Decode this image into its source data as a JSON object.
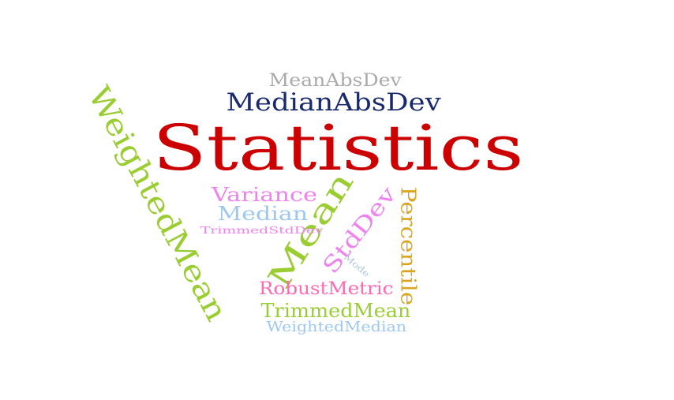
{
  "words": [
    {
      "text": "Statistics",
      "color": "#cc0000"
    },
    {
      "text": "MedianAbsDev",
      "color": "#1a2a6c"
    },
    {
      "text": "MeanAbsDev",
      "color": "#aaaaaa"
    },
    {
      "text": "WeightedMean",
      "color": "#9acd32"
    },
    {
      "text": "Mean",
      "color": "#9acd32"
    },
    {
      "text": "Variance",
      "color": "#ee82ee"
    },
    {
      "text": "Median",
      "color": "#9ec8f2"
    },
    {
      "text": "TrimmedStdDev",
      "color": "#ee82ee"
    },
    {
      "text": "StdDev",
      "color": "#ee82ee"
    },
    {
      "text": "Percentile",
      "color": "#daa520"
    },
    {
      "text": "Mode",
      "color": "#b0c4de"
    },
    {
      "text": "RobustMetric",
      "color": "#ff69b4"
    },
    {
      "text": "TrimmedMean",
      "color": "#9acd32"
    },
    {
      "text": "WeightedMedian",
      "color": "#9ec8f2"
    }
  ]
}
